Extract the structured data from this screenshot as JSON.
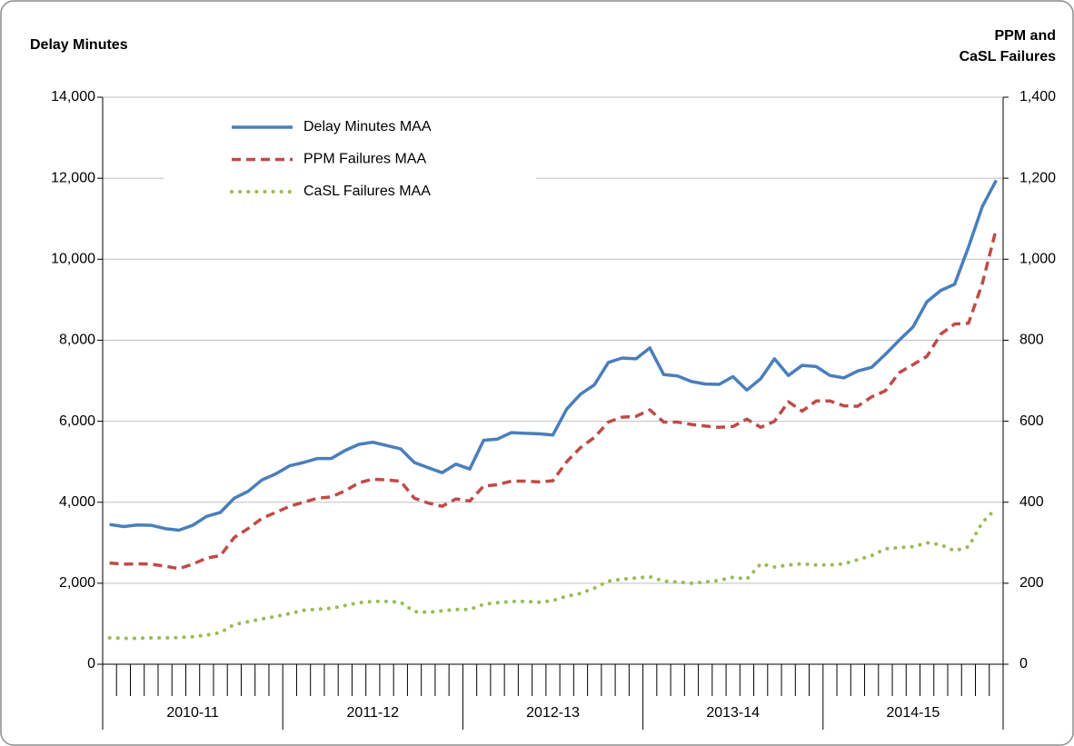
{
  "chart_data": {
    "type": "line",
    "y_label": "Delay Minutes",
    "y2_label": [
      "PPM and",
      "CaSL Failures"
    ],
    "groups": [
      "2010-11",
      "2011-12",
      "2012-13",
      "2013-14",
      "2014-15"
    ],
    "ylim": [
      0,
      14000
    ],
    "yticks": [
      0,
      {
        "value": 2000,
        "label": "2,000"
      },
      {
        "value": 4000,
        "label": "4,000"
      },
      {
        "value": 6000,
        "label": "6,000"
      },
      {
        "value": 8000,
        "label": "8,000"
      },
      {
        "value": 10000,
        "label": "10,000"
      },
      {
        "value": 12000,
        "label": "12,000"
      },
      {
        "value": 14000,
        "label": "14,000"
      }
    ],
    "y2lim": [
      0,
      1400
    ],
    "y2ticks": [
      0,
      200,
      400,
      600,
      800,
      {
        "value": 1000,
        "label": "1,000"
      },
      {
        "value": 1200,
        "label": "1,200"
      },
      {
        "value": 1400,
        "label": "1,400"
      }
    ],
    "grid": true,
    "legend": "upper left",
    "series": [
      {
        "name": "Delay Minutes MAA",
        "color": "#4a7ebb",
        "style": "solid",
        "values": [
          3450,
          3400,
          3440,
          3430,
          3350,
          3310,
          3430,
          3650,
          3750,
          4100,
          4270,
          4550,
          4700,
          4900,
          4980,
          5080,
          5080,
          5280,
          5430,
          5480,
          5400,
          5320,
          4980,
          4850,
          4730,
          4940,
          4820,
          5530,
          5560,
          5720,
          5700,
          5690,
          5660,
          6300,
          6670,
          6900,
          7450,
          7560,
          7540,
          7810,
          7150,
          7120,
          6980,
          6920,
          6910,
          7100,
          6770,
          7050,
          7540,
          7130,
          7380,
          7350,
          7130,
          7070,
          7240,
          7330,
          7650,
          8000,
          8330,
          8950,
          9230,
          9380,
          10300,
          11300,
          11950
        ]
      },
      {
        "name": "PPM Failures MAA",
        "color": "#be4b48",
        "style": "dashed",
        "axis": "y2",
        "values": [
          250,
          247,
          248,
          247,
          242,
          236,
          247,
          262,
          268,
          313,
          335,
          360,
          375,
          390,
          400,
          410,
          413,
          428,
          448,
          457,
          455,
          452,
          410,
          398,
          390,
          408,
          403,
          440,
          443,
          452,
          452,
          450,
          453,
          500,
          535,
          560,
          598,
          610,
          612,
          628,
          598,
          598,
          592,
          588,
          585,
          587,
          605,
          585,
          600,
          648,
          625,
          650,
          650,
          638,
          637,
          660,
          675,
          720,
          740,
          760,
          815,
          840,
          842,
          940,
          1075
        ]
      },
      {
        "name": "CaSL Failures MAA",
        "color": "#9bbb59",
        "style": "dotted",
        "axis": "y2",
        "values": [
          65,
          64,
          64,
          65,
          65,
          66,
          68,
          72,
          78,
          98,
          105,
          112,
          118,
          125,
          133,
          136,
          138,
          145,
          152,
          155,
          155,
          153,
          130,
          128,
          132,
          135,
          135,
          148,
          152,
          155,
          155,
          153,
          157,
          168,
          175,
          188,
          205,
          210,
          213,
          216,
          205,
          203,
          200,
          203,
          207,
          215,
          210,
          248,
          240,
          245,
          248,
          245,
          245,
          248,
          258,
          268,
          285,
          288,
          290,
          300,
          295,
          280,
          290,
          350,
          385
        ]
      }
    ]
  }
}
